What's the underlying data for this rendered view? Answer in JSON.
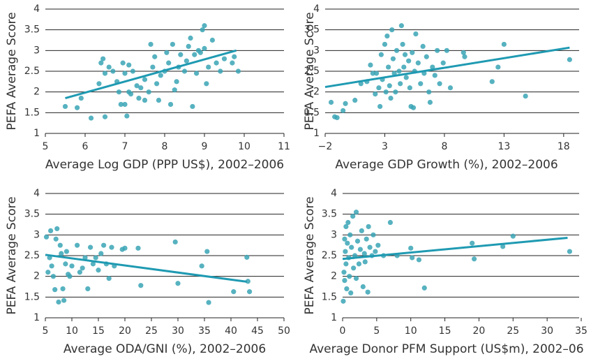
{
  "chart_data": [
    {
      "type": "scatter",
      "y_label": "PEFA Average Score",
      "x_label": "Average Log GDP (PPP US$), 2002–2006",
      "xlim": [
        5,
        11
      ],
      "xticks": [
        5,
        6,
        7,
        8,
        9,
        10,
        11
      ],
      "ylim": [
        1,
        4
      ],
      "yticks": [
        1,
        1.5,
        2,
        2.5,
        3,
        3.5,
        4
      ],
      "grid": true,
      "series": [
        {
          "color": "#3aa5b5",
          "x": [
            5.5,
            5.8,
            5.9,
            6.15,
            6.35,
            6.4,
            6.45,
            6.5,
            6.5,
            6.6,
            6.7,
            6.8,
            6.85,
            6.9,
            6.95,
            7.0,
            7.0,
            7.05,
            7.1,
            7.1,
            7.15,
            7.2,
            7.3,
            7.35,
            7.4,
            7.5,
            7.5,
            7.6,
            7.65,
            7.7,
            7.75,
            7.8,
            7.85,
            7.9,
            8.0,
            8.05,
            8.1,
            8.15,
            8.2,
            8.25,
            8.3,
            8.35,
            8.4,
            8.5,
            8.55,
            8.6,
            8.65,
            8.7,
            8.75,
            8.8,
            8.85,
            8.9,
            8.95,
            9.0,
            9.0,
            9.05,
            9.1,
            9.2,
            9.3,
            9.4,
            9.5,
            9.7,
            9.75,
            9.85
          ],
          "y": [
            1.65,
            1.62,
            1.85,
            1.37,
            2.2,
            2.7,
            2.8,
            1.4,
            2.45,
            2.6,
            2.5,
            2.25,
            2.0,
            1.7,
            2.7,
            1.7,
            2.45,
            1.42,
            2.65,
            2.0,
            1.95,
            2.5,
            2.15,
            1.85,
            2.1,
            1.8,
            2.3,
            2.0,
            3.15,
            2.6,
            2.85,
            2.2,
            1.8,
            2.4,
            2.5,
            2.95,
            2.7,
            1.7,
            3.15,
            2.05,
            2.25,
            2.6,
            2.9,
            2.5,
            2.75,
            3.1,
            3.3,
            1.65,
            2.9,
            2.45,
            3.0,
            2.95,
            3.5,
            3.6,
            3.05,
            2.2,
            2.6,
            3.25,
            2.7,
            2.5,
            2.8,
            2.7,
            2.85,
            2.5
          ]
        }
      ],
      "trend": {
        "color": "#1f9ab2",
        "x": [
          5.5,
          9.8
        ],
        "y": [
          1.85,
          3.0
        ]
      }
    },
    {
      "type": "scatter",
      "y_label": "PEFA Average Score",
      "x_label": "Average GDP Growth (%), 2002–2006",
      "xlim": [
        -2,
        20
      ],
      "xticks": [
        {
          "value": -2,
          "label": "−2"
        },
        3,
        8,
        13,
        18
      ],
      "ylim": [
        1,
        4
      ],
      "yticks": [
        1,
        1.5,
        2,
        2.5,
        3,
        3.5,
        4
      ],
      "grid": true,
      "series": [
        {
          "color": "#3aa5b5",
          "x": [
            -1.5,
            -1.2,
            -1.0,
            -0.5,
            -0.3,
            0.5,
            1,
            1.5,
            1.8,
            2,
            2.2,
            2.3,
            2.5,
            2.6,
            2.7,
            2.8,
            3.0,
            3.1,
            3.2,
            3.3,
            3.4,
            3.5,
            3.6,
            3.7,
            3.8,
            3.9,
            4.0,
            4.2,
            4.3,
            4.4,
            4.5,
            4.6,
            4.7,
            4.8,
            5.0,
            5.1,
            5.2,
            5.3,
            5.4,
            5.5,
            5.6,
            5.8,
            6.0,
            6.2,
            6.3,
            6.5,
            6.7,
            6.8,
            7.0,
            7.2,
            7.4,
            7.6,
            7.9,
            8.2,
            8.5,
            9.6,
            9.7,
            12,
            12.5,
            13,
            14.8,
            18.5
          ],
          "y": [
            1.75,
            1.4,
            1.38,
            1.55,
            1.72,
            1.8,
            2.2,
            2.25,
            2.65,
            2.45,
            1.95,
            2.45,
            2.1,
            1.65,
            2.9,
            2.3,
            3.15,
            2.0,
            3.35,
            2.6,
            2.15,
            1.85,
            3.5,
            2.8,
            2.45,
            2.0,
            3.0,
            2.5,
            2.2,
            3.6,
            3.15,
            2.6,
            2.9,
            2.35,
            2.75,
            2.1,
            1.65,
            2.95,
            1.62,
            2.5,
            3.4,
            2.7,
            2.2,
            3.1,
            2.45,
            2.85,
            2.0,
            1.75,
            2.6,
            2.4,
            3.0,
            2.2,
            2.7,
            3.0,
            2.1,
            2.95,
            2.85,
            2.25,
            2.6,
            3.15,
            1.9,
            2.78
          ]
        }
      ],
      "trend": {
        "color": "#1f9ab2",
        "x": [
          -2,
          18.5
        ],
        "y": [
          2.12,
          3.07
        ]
      }
    },
    {
      "type": "scatter",
      "y_label": "PEFA Average Score",
      "x_label": "Average ODA/GNI (%), 2002–2006",
      "xlim": [
        5,
        50
      ],
      "xticks": [
        5,
        10,
        15,
        20,
        25,
        30,
        35,
        40,
        45,
        50
      ],
      "ylim": [
        1,
        4
      ],
      "yticks": [
        1,
        1.5,
        2,
        2.5,
        3,
        3.5,
        4
      ],
      "grid": true,
      "series": [
        {
          "color": "#3aa5b5",
          "x": [
            5.2,
            5.5,
            5.8,
            6,
            6.2,
            6.5,
            6.8,
            7,
            7.2,
            7.5,
            7.8,
            8,
            8.3,
            8.5,
            8.8,
            9,
            9.3,
            9.6,
            10,
            11,
            11.5,
            12,
            12.5,
            13,
            13.5,
            14,
            14.5,
            15,
            15.5,
            16,
            16.5,
            17,
            17.5,
            18,
            19.5,
            20,
            22.5,
            23,
            29.5,
            30,
            34.5,
            35.5,
            35.8,
            40.5,
            43,
            43.2,
            43.5
          ],
          "y": [
            2.95,
            2.1,
            2.45,
            3.1,
            2.25,
            2.0,
            1.68,
            2.9,
            3.15,
            1.38,
            2.75,
            2.55,
            1.7,
            1.42,
            2.3,
            2.6,
            2.05,
            2.0,
            2.25,
            2.75,
            2.1,
            2.2,
            2.45,
            1.7,
            2.7,
            2.3,
            2.45,
            2.15,
            2.55,
            2.75,
            2.3,
            1.95,
            2.7,
            2.25,
            2.65,
            2.68,
            2.68,
            1.78,
            2.83,
            1.83,
            2.25,
            2.6,
            1.37,
            1.63,
            2.46,
            1.88,
            1.63
          ]
        }
      ],
      "trend": {
        "color": "#1f9ab2",
        "x": [
          5,
          43
        ],
        "y": [
          2.52,
          1.87
        ]
      }
    },
    {
      "type": "scatter",
      "y_label": "PEFA Average Score",
      "x_label": "Average Donor PFM Support (US$m), 2002–06",
      "xlim": [
        0,
        35
      ],
      "xticks": [
        0,
        5,
        10,
        15,
        20,
        25,
        30,
        35
      ],
      "ylim": [
        1,
        4
      ],
      "yticks": [
        1,
        1.5,
        2,
        2.5,
        3,
        3.5,
        4
      ],
      "grid": true,
      "series": [
        {
          "color": "#3aa5b5",
          "x": [
            0.1,
            0.2,
            0.3,
            0.3,
            0.4,
            0.5,
            0.5,
            0.6,
            0.7,
            0.8,
            0.9,
            1.0,
            1.1,
            1.2,
            1.3,
            1.5,
            1.6,
            1.8,
            2.0,
            2.0,
            2.2,
            2.4,
            2.6,
            2.8,
            3,
            3.2,
            3.3,
            3.5,
            3.7,
            3.8,
            4,
            4.3,
            4.5,
            4.8,
            5.2,
            6,
            7,
            8,
            10,
            10.2,
            11.2,
            12,
            19,
            19.3,
            23.5,
            25,
            33.3
          ],
          "y": [
            1.4,
            2.1,
            2.9,
            1.9,
            2.6,
            3.2,
            2.3,
            1.7,
            2.8,
            3.3,
            2.45,
            2.0,
            3.0,
            1.6,
            2.7,
            3.45,
            2.2,
            2.5,
            3.55,
            1.95,
            2.85,
            2.3,
            2.65,
            3.1,
            1.75,
            2.55,
            2.35,
            2.9,
            1.62,
            3.2,
            2.7,
            2.5,
            3.0,
            2.6,
            2.75,
            2.5,
            3.3,
            2.5,
            2.68,
            2.45,
            2.4,
            1.72,
            2.8,
            2.42,
            2.72,
            2.97,
            2.6
          ]
        }
      ],
      "trend": {
        "color": "#1f9ab2",
        "x": [
          0,
          33
        ],
        "y": [
          2.42,
          2.93
        ]
      }
    }
  ]
}
